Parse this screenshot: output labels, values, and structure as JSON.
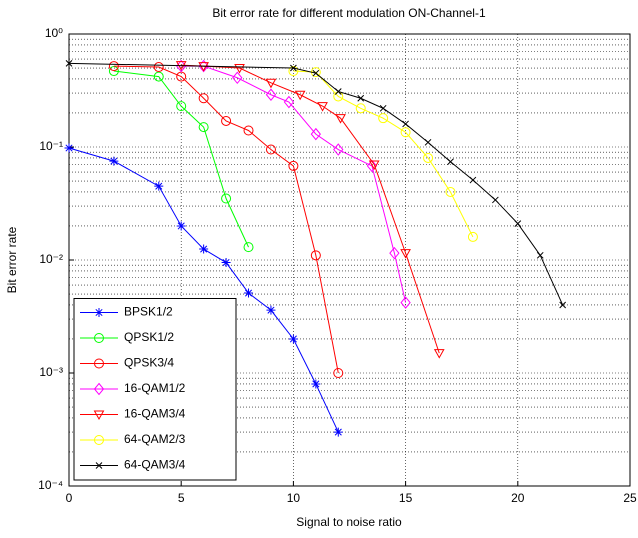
{
  "chart_data": {
    "type": "line",
    "title": "Bit error rate for different modulation ON-Channel-1",
    "x_label": "Signal to noise ratio",
    "y_label": "Bit error rate",
    "xlim": [
      0,
      25
    ],
    "xticks": [
      0,
      5,
      10,
      15,
      20,
      25
    ],
    "ylim": [
      0.0001,
      1
    ],
    "y_scale": "log",
    "yticks": [
      {
        "value": 1,
        "label": "10⁰"
      },
      {
        "value": 0.1,
        "label": "10⁻¹"
      },
      {
        "value": 0.01,
        "label": "10⁻²"
      },
      {
        "value": 0.001,
        "label": "10⁻³"
      },
      {
        "value": 0.0001,
        "label": "10⁻⁴"
      }
    ],
    "grid": true,
    "minor_grid": true,
    "legend": "lower left",
    "series": [
      {
        "name": "BPSK1/2",
        "color": "#0000ff",
        "marker": "star",
        "x": [
          0,
          2,
          4,
          5,
          6,
          7,
          8,
          9,
          10,
          11,
          12
        ],
        "values": [
          0.098,
          0.075,
          0.045,
          0.02,
          0.0125,
          0.0095,
          0.0051,
          0.0036,
          0.002,
          0.0008,
          0.0003
        ]
      },
      {
        "name": "QPSK1/2",
        "color": "#00ff00",
        "marker": "circle",
        "x": [
          2,
          4,
          5,
          6,
          7,
          8
        ],
        "values": [
          0.47,
          0.42,
          0.23,
          0.15,
          0.035,
          0.013
        ]
      },
      {
        "name": "QPSK3/4",
        "color": "#ff0000",
        "marker": "circle",
        "x": [
          2,
          4,
          5,
          6,
          7,
          8,
          9,
          10,
          11,
          12
        ],
        "values": [
          0.52,
          0.51,
          0.42,
          0.27,
          0.17,
          0.14,
          0.095,
          0.068,
          0.011,
          0.001
        ]
      },
      {
        "name": "16-QAM1/2",
        "color": "#ff00ff",
        "marker": "diamond",
        "x": [
          5,
          6,
          7.5,
          9,
          9.8,
          11,
          12,
          13.5,
          14.5,
          15
        ],
        "values": [
          0.52,
          0.52,
          0.41,
          0.29,
          0.25,
          0.13,
          0.095,
          0.068,
          0.0115,
          0.0042
        ]
      },
      {
        "name": "16-QAM3/4",
        "color": "#ff0000",
        "marker": "triangle-down",
        "x": [
          5,
          6,
          7.6,
          9,
          10.3,
          11.3,
          12.1,
          13.6,
          15,
          16.5
        ],
        "values": [
          0.53,
          0.52,
          0.5,
          0.37,
          0.29,
          0.23,
          0.18,
          0.07,
          0.0115,
          0.0015
        ]
      },
      {
        "name": "64-QAM2/3",
        "color": "#ffff00",
        "marker": "circle",
        "x": [
          10,
          11,
          12,
          13,
          14,
          15,
          16,
          17,
          18
        ],
        "values": [
          0.47,
          0.46,
          0.28,
          0.22,
          0.18,
          0.135,
          0.08,
          0.04,
          0.016
        ]
      },
      {
        "name": "64-QAM3/4",
        "color": "#000000",
        "marker": "x",
        "x": [
          0,
          10,
          11,
          12,
          13,
          14,
          15,
          16,
          17,
          18,
          19,
          20,
          21,
          22
        ],
        "values": [
          0.55,
          0.5,
          0.45,
          0.31,
          0.27,
          0.22,
          0.16,
          0.11,
          0.074,
          0.051,
          0.034,
          0.021,
          0.011,
          0.004
        ]
      }
    ]
  }
}
